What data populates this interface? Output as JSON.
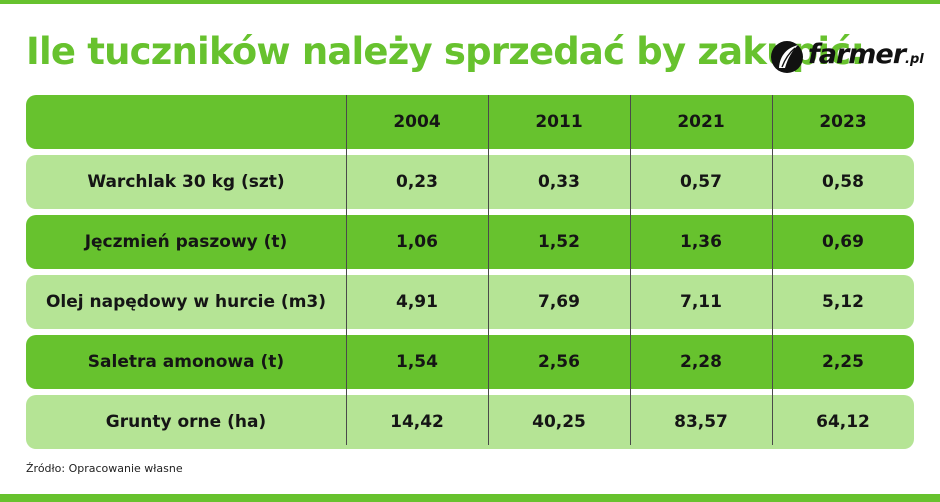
{
  "title": "Ile tuczników należy sprzedać by zakupić:",
  "logo": {
    "name": "farmer",
    "tld": ".pl",
    "icon": "leaf-icon"
  },
  "source": "Źródło: Opracowanie własne",
  "colors": {
    "dark_row": "#67c22e",
    "light_row": "#b5e495",
    "title": "#67c22e"
  },
  "chart_data": {
    "type": "table",
    "columns": [
      "2004",
      "2011",
      "2021",
      "2023"
    ],
    "rows": [
      {
        "label": "Warchlak 30 kg (szt)",
        "values": [
          "0,23",
          "0,33",
          "0,57",
          "0,58"
        ]
      },
      {
        "label": "Jęczmień paszowy (t)",
        "values": [
          "1,06",
          "1,52",
          "1,36",
          "0,69"
        ]
      },
      {
        "label": "Olej napędowy w hurcie (m3)",
        "values": [
          "4,91",
          "7,69",
          "7,11",
          "5,12"
        ]
      },
      {
        "label": "Saletra amonowa (t)",
        "values": [
          "1,54",
          "2,56",
          "2,28",
          "2,25"
        ]
      },
      {
        "label": "Grunty orne (ha)",
        "values": [
          "14,42",
          "40,25",
          "83,57",
          "64,12"
        ]
      }
    ]
  }
}
